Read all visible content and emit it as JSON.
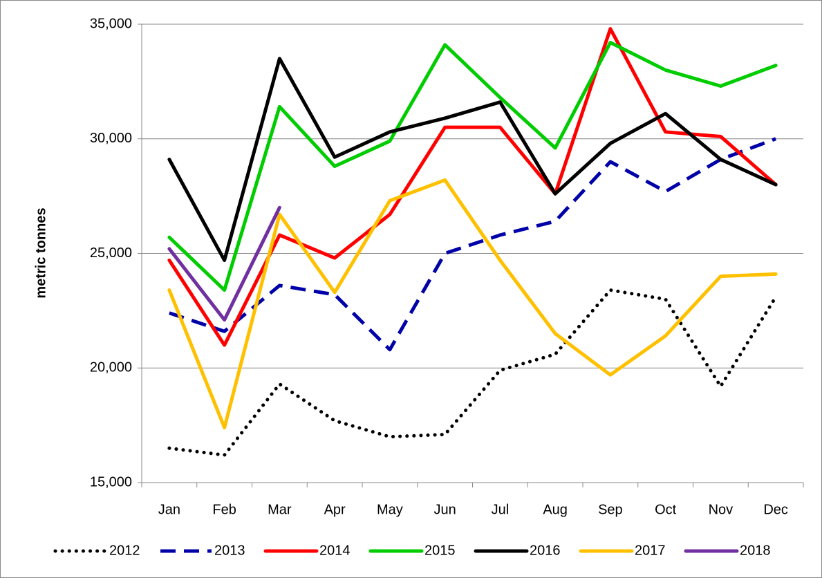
{
  "chart_data": {
    "type": "line",
    "y_label": "metric tonnes",
    "categories": [
      "Jan",
      "Feb",
      "Mar",
      "Apr",
      "May",
      "Jun",
      "Jul",
      "Aug",
      "Sep",
      "Oct",
      "Nov",
      "Dec"
    ],
    "ylim": [
      15000,
      35000
    ],
    "yticks": [
      {
        "value": 15000,
        "label": "15,000"
      },
      {
        "value": 20000,
        "label": "20,000"
      },
      {
        "value": 25000,
        "label": "25,000"
      },
      {
        "value": 30000,
        "label": "30,000"
      },
      {
        "value": 35000,
        "label": "35,000"
      }
    ],
    "grid": true,
    "legend": "bottom",
    "series": [
      {
        "name": "2012",
        "color": "#000000",
        "line_style": "dotted",
        "values": [
          16500,
          16200,
          19300,
          17700,
          17000,
          17100,
          19900,
          20600,
          23400,
          23000,
          19200,
          23100
        ]
      },
      {
        "name": "2013",
        "color": "#0000a8",
        "line_style": "dashed",
        "values": [
          22400,
          21600,
          23600,
          23200,
          20800,
          25000,
          25800,
          26400,
          29000,
          27700,
          29100,
          30000
        ]
      },
      {
        "name": "2014",
        "color": "#ff0000",
        "line_style": "solid",
        "values": [
          24700,
          21000,
          25800,
          24800,
          26700,
          30500,
          30500,
          27600,
          34800,
          30300,
          30100,
          28000
        ]
      },
      {
        "name": "2015",
        "color": "#00cc00",
        "line_style": "solid",
        "values": [
          25700,
          23400,
          31400,
          28800,
          29900,
          34100,
          31800,
          29600,
          34200,
          33000,
          32300,
          33200
        ]
      },
      {
        "name": "2016",
        "color": "#000000",
        "line_style": "solid",
        "values": [
          29100,
          24700,
          33500,
          29200,
          30300,
          30900,
          31600,
          27600,
          29800,
          31100,
          29100,
          28000
        ]
      },
      {
        "name": "2017",
        "color": "#ffc000",
        "line_style": "solid",
        "values": [
          23400,
          17400,
          26700,
          23300,
          27300,
          28200,
          24700,
          21500,
          19700,
          21400,
          24000,
          24100
        ]
      },
      {
        "name": "2018",
        "color": "#7030a0",
        "line_style": "solid",
        "values": [
          25200,
          22100,
          27000,
          null,
          null,
          null,
          null,
          null,
          null,
          null,
          null,
          null
        ]
      }
    ]
  }
}
